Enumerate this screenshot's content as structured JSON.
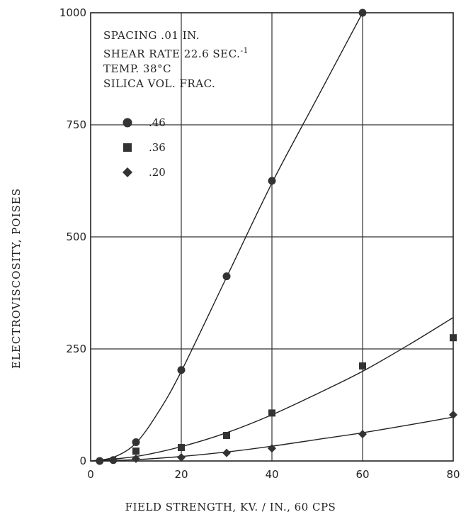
{
  "chart_data": {
    "type": "line",
    "xlabel": "FIELD STRENGTH,  KV. / IN.,  60  CPS",
    "ylabel": "ELECTROVISCOSITY,  POISES",
    "xlim": [
      0,
      80
    ],
    "ylim": [
      0,
      1000
    ],
    "x_ticks": [
      "0",
      "20",
      "40",
      "60",
      "80"
    ],
    "y_ticks": [
      "0",
      "250",
      "500",
      "750",
      "1000"
    ],
    "grid": true,
    "annotations": {
      "line1": "SPACING .01 IN.",
      "line2": "SHEAR RATE 22.6 SEC.",
      "line2_sup": "-1",
      "line3": "TEMP. 38°C",
      "line4": "SILICA VOL. FRAC."
    },
    "legend_position": "top-left",
    "series": [
      {
        "name": ".46",
        "marker": "circle",
        "points": [
          [
            2,
            0
          ],
          [
            5,
            2
          ],
          [
            10,
            42
          ],
          [
            20,
            203
          ],
          [
            30,
            412
          ],
          [
            40,
            625
          ],
          [
            60,
            1000
          ]
        ],
        "curve": [
          [
            0,
            0
          ],
          [
            5,
            8
          ],
          [
            10,
            40
          ],
          [
            15,
            110
          ],
          [
            20,
            200
          ],
          [
            30,
            410
          ],
          [
            40,
            620
          ],
          [
            50,
            810
          ],
          [
            60,
            1000
          ]
        ]
      },
      {
        "name": ".36",
        "marker": "square",
        "points": [
          [
            10,
            22
          ],
          [
            20,
            30
          ],
          [
            30,
            57
          ],
          [
            40,
            107
          ],
          [
            60,
            212
          ],
          [
            80,
            275
          ]
        ],
        "curve": [
          [
            0,
            0
          ],
          [
            10,
            10
          ],
          [
            20,
            32
          ],
          [
            30,
            63
          ],
          [
            40,
            103
          ],
          [
            50,
            150
          ],
          [
            60,
            200
          ],
          [
            70,
            258
          ],
          [
            80,
            320
          ]
        ]
      },
      {
        "name": ".20",
        "marker": "diamond",
        "points": [
          [
            10,
            5
          ],
          [
            20,
            8
          ],
          [
            30,
            18
          ],
          [
            40,
            28
          ],
          [
            60,
            60
          ],
          [
            80,
            103
          ]
        ],
        "curve": [
          [
            0,
            0
          ],
          [
            10,
            3
          ],
          [
            20,
            10
          ],
          [
            30,
            20
          ],
          [
            40,
            33
          ],
          [
            50,
            48
          ],
          [
            60,
            63
          ],
          [
            70,
            80
          ],
          [
            80,
            98
          ]
        ]
      }
    ]
  }
}
